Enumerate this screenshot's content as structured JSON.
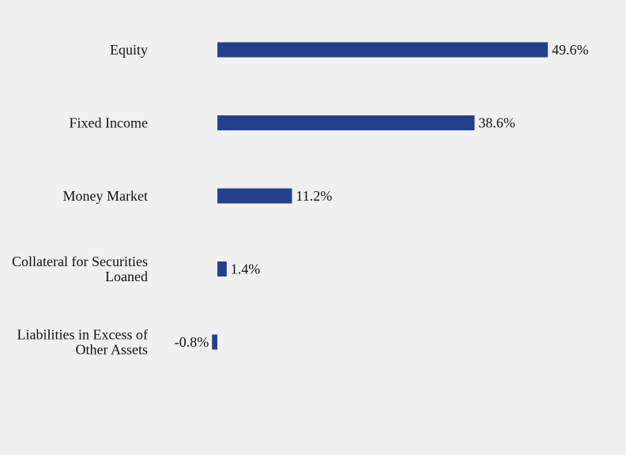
{
  "chart_data": {
    "type": "bar",
    "orientation": "horizontal",
    "categories": [
      [
        "Equity"
      ],
      [
        "Fixed Income"
      ],
      [
        "Money Market"
      ],
      [
        "Collateral for Securities",
        "Loaned"
      ],
      [
        "Liabilities in Excess of",
        "Other Assets"
      ]
    ],
    "values": [
      49.6,
      38.6,
      11.2,
      1.4,
      -0.8
    ],
    "value_labels": [
      "49.6%",
      "38.6%",
      "11.2%",
      "1.4%",
      "-0.8%"
    ],
    "unit": "%",
    "title": "",
    "xlabel": "",
    "ylabel": "",
    "grid": false,
    "legend": "none",
    "bar_color": "#27408b",
    "background_color": "#f0f0f0"
  }
}
